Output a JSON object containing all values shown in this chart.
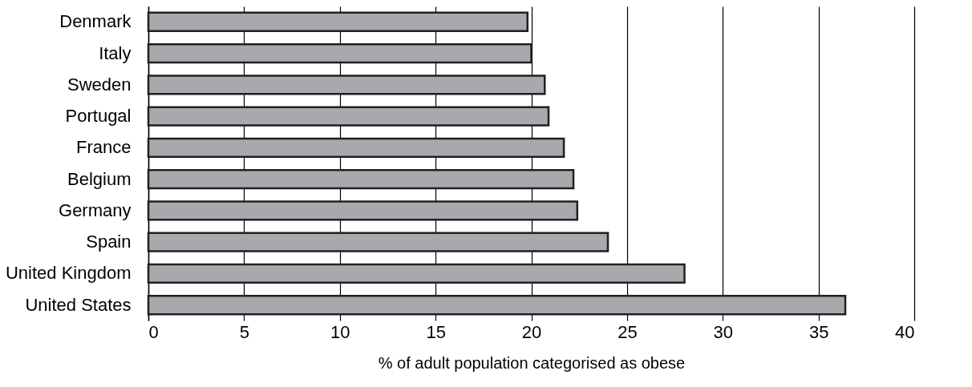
{
  "chart_data": {
    "type": "bar",
    "orientation": "horizontal",
    "xlabel": "% of adult population categorised as obese",
    "categories": [
      "Denmark",
      "Italy",
      "Sweden",
      "Portugal",
      "France",
      "Belgium",
      "Germany",
      "Spain",
      "United Kingdom",
      "United States"
    ],
    "values": [
      19.8,
      20.0,
      20.7,
      20.9,
      21.7,
      22.2,
      22.4,
      24.0,
      28.0,
      36.4
    ],
    "color": "#a7a9ac",
    "xlim": [
      0,
      40
    ],
    "xticks": [
      0,
      5,
      10,
      15,
      20,
      25,
      30,
      35,
      40
    ],
    "grid": "x"
  }
}
